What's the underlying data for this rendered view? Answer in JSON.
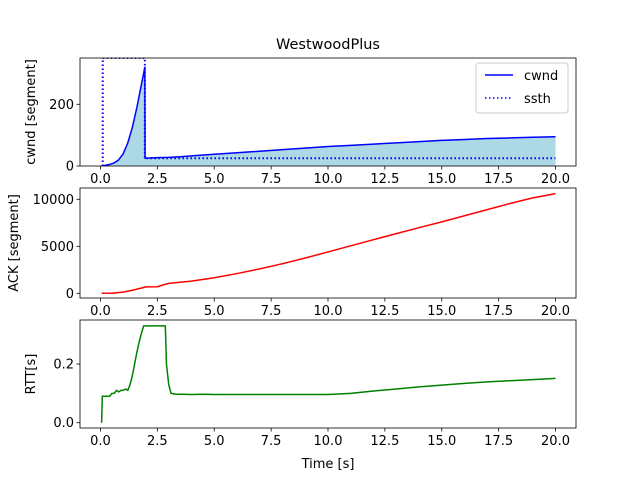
{
  "chart_data": [
    {
      "type": "line",
      "title": "WestwoodPlus",
      "xlabel": "",
      "ylabel": "cwnd [segment]",
      "xlim": [
        -0.9,
        20.9
      ],
      "ylim": [
        0,
        350
      ],
      "xticks": [
        0.0,
        2.5,
        5.0,
        7.5,
        10.0,
        12.5,
        15.0,
        17.5,
        20.0
      ],
      "xtick_labels": [
        "0.0",
        "2.5",
        "5.0",
        "7.5",
        "10.0",
        "12.5",
        "15.0",
        "17.5",
        "20.0"
      ],
      "yticks": [
        0,
        200
      ],
      "ytick_labels": [
        "0",
        "200"
      ],
      "legend_position": "top-right",
      "series": [
        {
          "name": "cwnd",
          "style": "solid",
          "color": "#0000ff",
          "fill": "#add8e6",
          "x": [
            0.05,
            0.2,
            0.4,
            0.6,
            0.8,
            1.0,
            1.2,
            1.4,
            1.6,
            1.8,
            1.95,
            1.96,
            2.5,
            3.0,
            3.5,
            4.0,
            5.0,
            6.0,
            7.0,
            8.0,
            9.0,
            10.0,
            11.0,
            12.0,
            13.0,
            14.0,
            15.0,
            16.0,
            17.0,
            18.0,
            19.0,
            20.0
          ],
          "y": [
            1,
            2,
            5,
            10,
            20,
            40,
            75,
            125,
            190,
            265,
            320,
            25,
            27,
            28,
            30,
            33,
            38,
            43,
            48,
            53,
            58,
            63,
            67,
            71,
            75,
            79,
            83,
            86,
            89,
            91,
            93,
            95
          ]
        },
        {
          "name": "ssth",
          "style": "dotted",
          "color": "#0000ff",
          "x": [
            0.1,
            0.1,
            0.1,
            1.95,
            1.95,
            1.95,
            20.0
          ],
          "y": [
            0,
            350,
            350,
            350,
            350,
            25,
            25
          ]
        }
      ]
    },
    {
      "type": "line",
      "title": "",
      "xlabel": "",
      "ylabel": "ACK [segment]",
      "xlim": [
        -0.9,
        20.9
      ],
      "ylim": [
        -500,
        11200
      ],
      "xticks": [
        0.0,
        2.5,
        5.0,
        7.5,
        10.0,
        12.5,
        15.0,
        17.5,
        20.0
      ],
      "xtick_labels": [
        "0.0",
        "2.5",
        "5.0",
        "7.5",
        "10.0",
        "12.5",
        "15.0",
        "17.5",
        "20.0"
      ],
      "yticks": [
        0,
        5000,
        10000
      ],
      "ytick_labels": [
        "0",
        "5000",
        "10000"
      ],
      "series": [
        {
          "name": "",
          "color": "#ff0000",
          "x": [
            0.05,
            0.5,
            1.0,
            1.5,
            2.0,
            2.5,
            2.8,
            3.0,
            4.0,
            5.0,
            6.0,
            7.0,
            8.0,
            9.0,
            10.0,
            11.0,
            12.0,
            13.0,
            14.0,
            15.0,
            16.0,
            17.0,
            18.0,
            19.0,
            20.0
          ],
          "y": [
            0,
            20,
            120,
            380,
            680,
            700,
            920,
            1050,
            1300,
            1650,
            2100,
            2600,
            3150,
            3750,
            4400,
            5050,
            5700,
            6350,
            6980,
            7600,
            8250,
            8900,
            9550,
            10150,
            10600
          ]
        }
      ]
    },
    {
      "type": "line",
      "title": "",
      "xlabel": "Time [s]",
      "ylabel": "RTT[s]",
      "xlim": [
        -0.9,
        20.9
      ],
      "ylim": [
        -0.018,
        0.35
      ],
      "xticks": [
        0.0,
        2.5,
        5.0,
        7.5,
        10.0,
        12.5,
        15.0,
        17.5,
        20.0
      ],
      "xtick_labels": [
        "0.0",
        "2.5",
        "5.0",
        "7.5",
        "10.0",
        "12.5",
        "15.0",
        "17.5",
        "20.0"
      ],
      "yticks": [
        0.0,
        0.2
      ],
      "ytick_labels": [
        "0.0",
        "0.2"
      ],
      "series": [
        {
          "name": "",
          "color": "#008000",
          "x": [
            0.05,
            0.08,
            0.1,
            0.2,
            0.3,
            0.4,
            0.5,
            0.6,
            0.7,
            0.8,
            0.9,
            1.0,
            1.1,
            1.2,
            1.3,
            1.4,
            1.5,
            1.6,
            1.7,
            1.8,
            1.9,
            2.0,
            2.2,
            2.4,
            2.6,
            2.85,
            2.9,
            3.0,
            3.1,
            3.3,
            3.6,
            4.0,
            4.5,
            5.0,
            6.0,
            7.0,
            8.0,
            9.0,
            10.0,
            11.0,
            12.0,
            13.0,
            14.0,
            15.0,
            16.0,
            17.0,
            18.0,
            19.0,
            20.0
          ],
          "y": [
            0.0,
            0.09,
            0.09,
            0.09,
            0.09,
            0.09,
            0.1,
            0.1,
            0.11,
            0.105,
            0.11,
            0.11,
            0.115,
            0.11,
            0.13,
            0.16,
            0.2,
            0.24,
            0.275,
            0.305,
            0.33,
            0.33,
            0.33,
            0.33,
            0.33,
            0.33,
            0.2,
            0.13,
            0.1,
            0.097,
            0.097,
            0.096,
            0.097,
            0.096,
            0.096,
            0.096,
            0.096,
            0.096,
            0.096,
            0.1,
            0.108,
            0.115,
            0.122,
            0.128,
            0.134,
            0.139,
            0.143,
            0.147,
            0.151
          ]
        }
      ]
    }
  ]
}
